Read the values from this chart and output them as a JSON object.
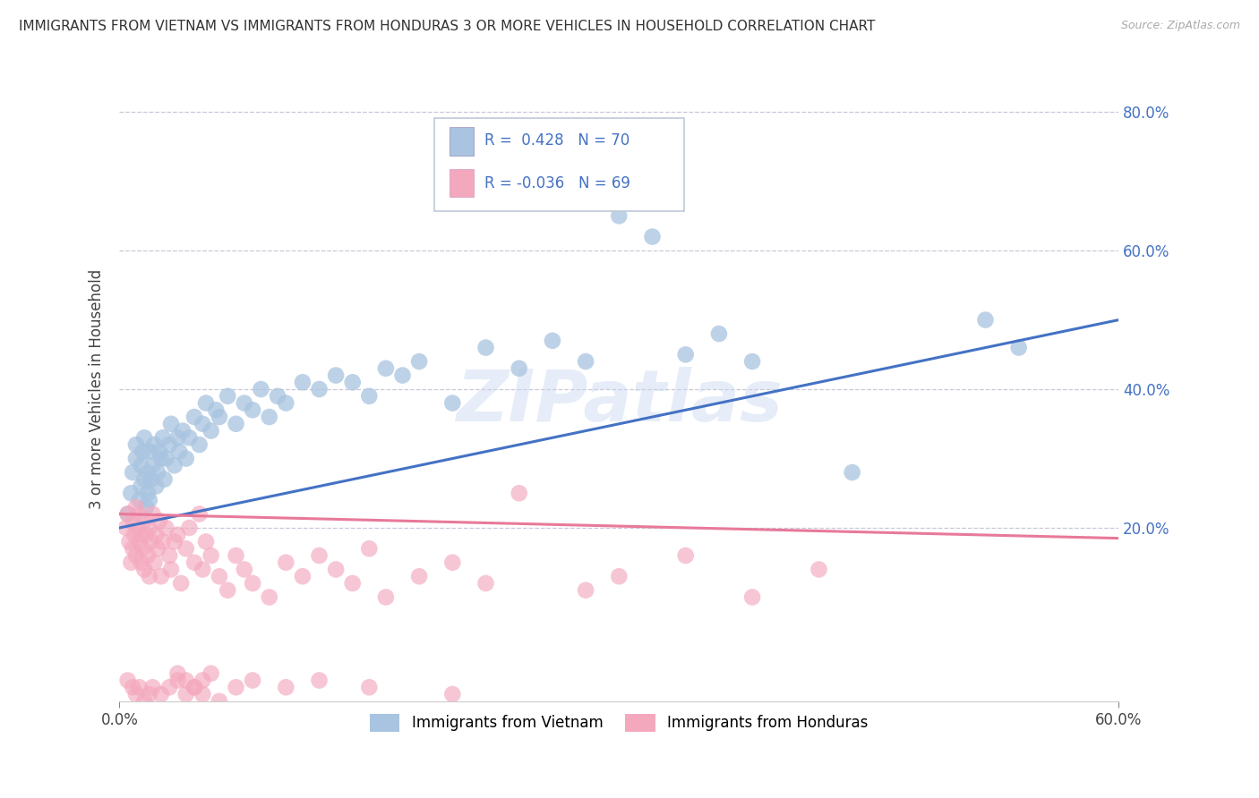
{
  "title": "IMMIGRANTS FROM VIETNAM VS IMMIGRANTS FROM HONDURAS 3 OR MORE VEHICLES IN HOUSEHOLD CORRELATION CHART",
  "source": "Source: ZipAtlas.com",
  "ylabel": "3 or more Vehicles in Household",
  "xlim": [
    0.0,
    0.6
  ],
  "ylim": [
    -0.05,
    0.85
  ],
  "yticks": [
    0.2,
    0.4,
    0.6,
    0.8
  ],
  "ytick_labels": [
    "20.0%",
    "40.0%",
    "60.0%",
    "80.0%"
  ],
  "legend_label1": "Immigrants from Vietnam",
  "legend_label2": "Immigrants from Honduras",
  "watermark": "ZIPatlas",
  "color_vietnam": "#a8c4e0",
  "color_honduras": "#f4a8be",
  "line_color_vietnam": "#4472c4",
  "line_color_honduras": "#e8799a",
  "text_color_blue": "#4472c4",
  "background_color": "#ffffff",
  "R1": 0.428,
  "N1": 70,
  "R2": -0.036,
  "N2": 69,
  "grid_color": "#c8c8d8",
  "title_fontsize": 11,
  "source_fontsize": 9,
  "tick_fontsize": 12,
  "ylabel_fontsize": 12
}
